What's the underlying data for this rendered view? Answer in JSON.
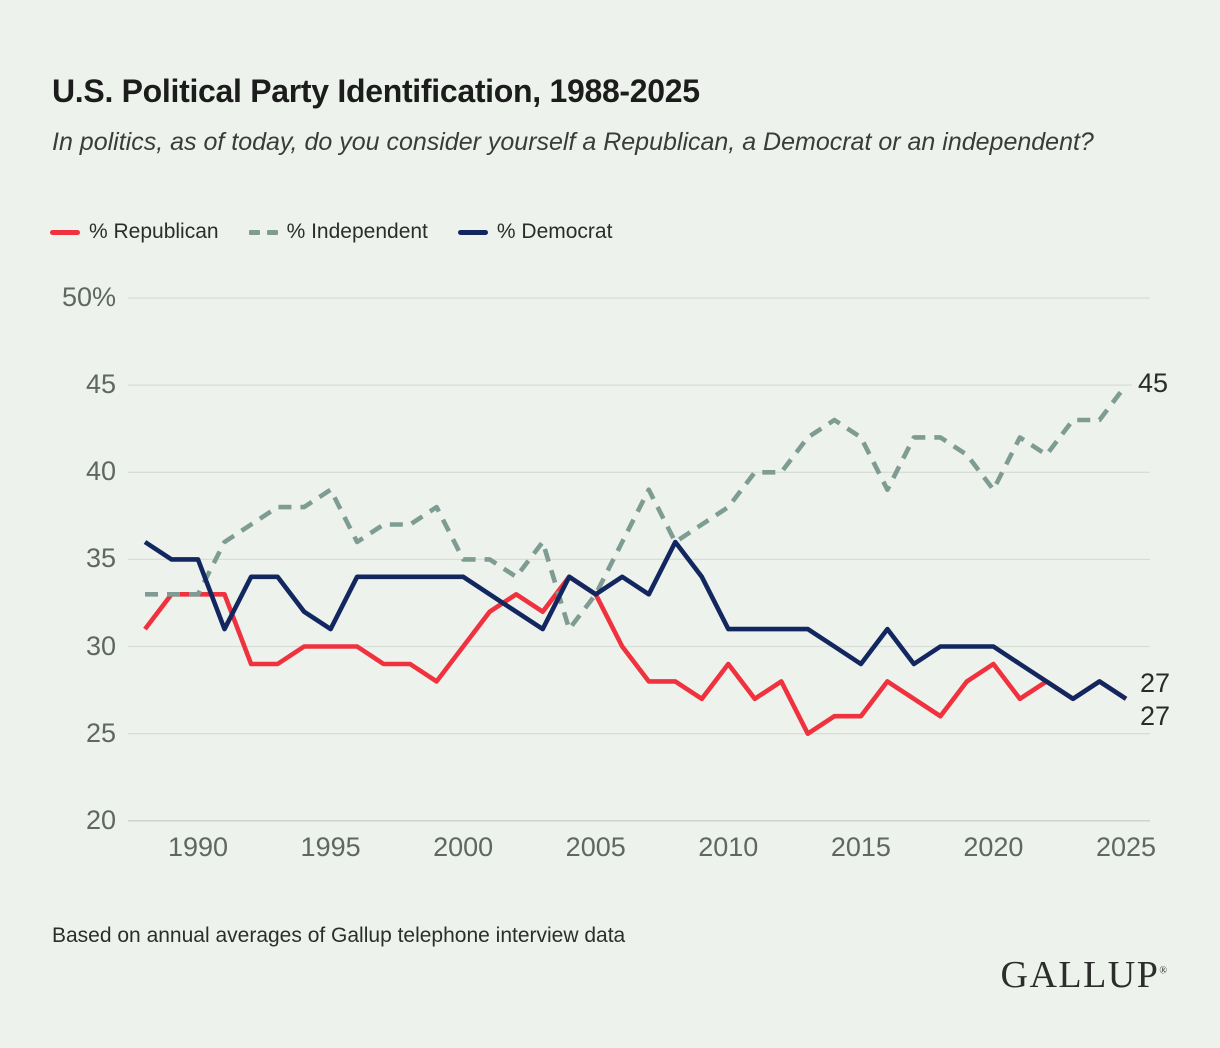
{
  "header": {
    "title": "U.S. Political Party Identification, 1988-2025",
    "subtitle": "In politics, as of today, do you consider yourself a Republican, a Democrat or an independent?"
  },
  "legend": {
    "items": [
      {
        "label": "% Republican",
        "color": "#f0323f",
        "style": "solid"
      },
      {
        "label": "% Independent",
        "color": "#7e9c94",
        "style": "dashed"
      },
      {
        "label": "% Democrat",
        "color": "#12275f",
        "style": "solid"
      }
    ]
  },
  "chart_data": {
    "type": "line",
    "title": "U.S. Political Party Identification, 1988-2025",
    "x": [
      1988,
      1989,
      1990,
      1991,
      1992,
      1993,
      1994,
      1995,
      1996,
      1997,
      1998,
      1999,
      2000,
      2001,
      2002,
      2003,
      2004,
      2005,
      2006,
      2007,
      2008,
      2009,
      2010,
      2011,
      2012,
      2013,
      2014,
      2015,
      2016,
      2017,
      2018,
      2019,
      2020,
      2021,
      2022,
      2023,
      2024,
      2025
    ],
    "series": [
      {
        "id": "republican",
        "name": "% Republican",
        "color": "#f0323f",
        "dash": false,
        "values": [
          31,
          33,
          33,
          33,
          29,
          29,
          30,
          30,
          30,
          29,
          29,
          28,
          30,
          32,
          33,
          32,
          34,
          33,
          30,
          28,
          28,
          27,
          29,
          27,
          28,
          25,
          26,
          26,
          28,
          27,
          26,
          28,
          29,
          27,
          28,
          27,
          28,
          27
        ]
      },
      {
        "id": "independent",
        "name": "% Independent",
        "color": "#7e9c94",
        "dash": true,
        "values": [
          33,
          33,
          33,
          36,
          37,
          38,
          38,
          39,
          36,
          37,
          37,
          38,
          35,
          35,
          34,
          36,
          31,
          33,
          36,
          39,
          36,
          37,
          38,
          40,
          40,
          42,
          43,
          42,
          39,
          42,
          42,
          41,
          39,
          42,
          41,
          43,
          43,
          45
        ]
      },
      {
        "id": "democrat",
        "name": "% Democrat",
        "color": "#12275f",
        "dash": false,
        "values": [
          36,
          35,
          35,
          31,
          34,
          34,
          32,
          31,
          34,
          34,
          34,
          34,
          34,
          33,
          32,
          31,
          34,
          33,
          34,
          33,
          36,
          34,
          31,
          31,
          31,
          31,
          30,
          29,
          31,
          29,
          30,
          30,
          30,
          29,
          28,
          27,
          28,
          27
        ]
      }
    ],
    "ylim": [
      20,
      50
    ],
    "grid": true,
    "legend_position": "top",
    "yticks": [
      {
        "value": 50,
        "label": "50%"
      },
      {
        "value": 45,
        "label": "45"
      },
      {
        "value": 40,
        "label": "40"
      },
      {
        "value": 35,
        "label": "35"
      },
      {
        "value": 30,
        "label": "30"
      },
      {
        "value": 25,
        "label": "25"
      },
      {
        "value": 20,
        "label": "20"
      }
    ],
    "xticks": [
      "1990",
      "1995",
      "2000",
      "2005",
      "2010",
      "2015",
      "2020",
      "2025"
    ],
    "end_labels": [
      {
        "series": "independent",
        "text": "45"
      },
      {
        "series": "republican",
        "text": "27"
      },
      {
        "series": "democrat",
        "text": "27"
      }
    ]
  },
  "footer": {
    "note": "Based on annual averages of Gallup telephone interview data",
    "brand": "GALLUP",
    "brand_mark": "®"
  }
}
